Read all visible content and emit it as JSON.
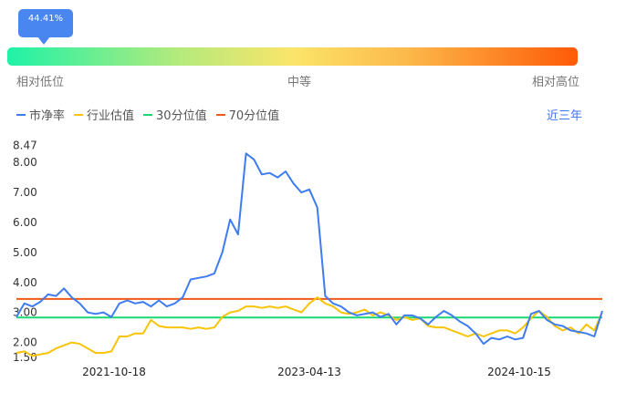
{
  "percentile": {
    "badge": "44.41%",
    "value": 0.4441,
    "low_label": "相对低位",
    "mid_label": "中等",
    "high_label": "相对高位",
    "gradient_colors": [
      "#1ff2a7",
      "#b4ea7c",
      "#fbe56a",
      "#fcb94a",
      "#fe5a06"
    ]
  },
  "range_button": "近三年",
  "chart_data": {
    "type": "line",
    "ylim": [
      1.5,
      8.47
    ],
    "yticks": [
      "1.50",
      "2.00",
      "3.00",
      "4.00",
      "5.00",
      "6.00",
      "7.00",
      "8.00",
      "8.47"
    ],
    "xticks": [
      "2021-10-18",
      "2023-04-13",
      "2024-10-15"
    ],
    "grid": false,
    "legend_position": "top-left",
    "series": [
      {
        "name": "市净率",
        "color": "#3f7cf0",
        "values": [
          2.85,
          3.3,
          3.2,
          3.35,
          3.6,
          3.55,
          3.8,
          3.5,
          3.3,
          3.0,
          2.95,
          3.0,
          2.85,
          3.3,
          3.4,
          3.3,
          3.35,
          3.2,
          3.4,
          3.2,
          3.3,
          3.5,
          4.1,
          4.15,
          4.2,
          4.3,
          5.0,
          6.1,
          5.6,
          8.3,
          8.1,
          7.6,
          7.65,
          7.5,
          7.7,
          7.3,
          7.0,
          7.1,
          6.5,
          3.55,
          3.3,
          3.2,
          3.0,
          2.9,
          2.95,
          3.0,
          2.85,
          2.95,
          2.6,
          2.9,
          2.9,
          2.8,
          2.6,
          2.85,
          3.05,
          2.9,
          2.7,
          2.55,
          2.3,
          1.95,
          2.15,
          2.1,
          2.2,
          2.1,
          2.15,
          2.95,
          3.05,
          2.75,
          2.6,
          2.55,
          2.4,
          2.35,
          2.3,
          2.2,
          3.05
        ]
      },
      {
        "name": "行业估值",
        "color": "#f7c407",
        "values": [
          1.65,
          1.7,
          1.55,
          1.6,
          1.65,
          1.8,
          1.9,
          2.0,
          1.95,
          1.8,
          1.65,
          1.65,
          1.7,
          2.2,
          2.2,
          2.3,
          2.3,
          2.75,
          2.55,
          2.5,
          2.5,
          2.5,
          2.45,
          2.5,
          2.45,
          2.5,
          2.85,
          3.0,
          3.05,
          3.2,
          3.2,
          3.15,
          3.2,
          3.15,
          3.2,
          3.1,
          3.0,
          3.3,
          3.5,
          3.3,
          3.2,
          3.0,
          2.95,
          3.0,
          3.1,
          2.9,
          3.0,
          2.9,
          2.75,
          2.85,
          2.75,
          2.8,
          2.55,
          2.5,
          2.5,
          2.4,
          2.3,
          2.2,
          2.3,
          2.2,
          2.3,
          2.4,
          2.4,
          2.3,
          2.5,
          2.8,
          3.05,
          2.85,
          2.55,
          2.4,
          2.5,
          2.3,
          2.6,
          2.4,
          3.0
        ]
      },
      {
        "name": "30分位值",
        "color": "#19d873",
        "values": [
          2.83
        ]
      },
      {
        "name": "70分位值",
        "color": "#f25a16",
        "values": [
          3.45
        ]
      }
    ]
  }
}
